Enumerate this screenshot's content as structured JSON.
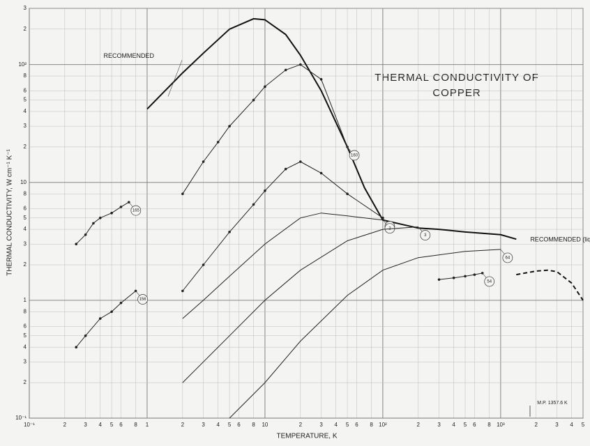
{
  "chart_data": {
    "type": "line",
    "title": "THERMAL CONDUCTIVITY OF",
    "subtitle": "COPPER",
    "x_label": "TEMPERATURE, K",
    "y_label": "THERMAL CONDUCTIVITY, W cm⁻¹ K⁻¹",
    "annotations": [
      "M.P. 1357.6 K"
    ],
    "log_x": true,
    "log_y": true,
    "grid": true,
    "xlim": [
      0.1,
      5000
    ],
    "ylim": [
      0.1,
      300
    ],
    "xticks": [
      {
        "value": 0.1,
        "label": "10⁻¹"
      },
      {
        "value": 0.2,
        "label": "2"
      },
      {
        "value": 0.3,
        "label": "3"
      },
      {
        "value": 0.4,
        "label": "4"
      },
      {
        "value": 0.5,
        "label": "5"
      },
      {
        "value": 0.6,
        "label": "6"
      },
      {
        "value": 0.8,
        "label": "8"
      },
      1,
      2,
      3,
      4,
      5,
      6,
      8,
      10,
      {
        "value": 20,
        "label": "2"
      },
      {
        "value": 30,
        "label": "3"
      },
      {
        "value": 40,
        "label": "4"
      },
      {
        "value": 50,
        "label": "5"
      },
      {
        "value": 60,
        "label": "6"
      },
      {
        "value": 80,
        "label": "8"
      },
      {
        "value": 100,
        "label": "10²"
      },
      {
        "value": 200,
        "label": "2"
      },
      {
        "value": 300,
        "label": "3"
      },
      {
        "value": 400,
        "label": "4"
      },
      {
        "value": 500,
        "label": "5"
      },
      {
        "value": 600,
        "label": "6"
      },
      {
        "value": 800,
        "label": "8"
      },
      {
        "value": 1000,
        "label": "10³"
      },
      {
        "value": 2000,
        "label": "2"
      },
      {
        "value": 3000,
        "label": "3"
      },
      {
        "value": 4000,
        "label": "4"
      },
      {
        "value": 5000,
        "label": "5"
      }
    ],
    "yticks": [
      {
        "value": 0.1,
        "label": "10⁻¹"
      },
      {
        "value": 0.2,
        "label": "2"
      },
      {
        "value": 0.3,
        "label": "3"
      },
      {
        "value": 0.4,
        "label": "4"
      },
      {
        "value": 0.5,
        "label": "5"
      },
      {
        "value": 0.6,
        "label": "6"
      },
      {
        "value": 0.8,
        "label": "8"
      },
      1,
      2,
      3,
      4,
      5,
      6,
      8,
      10,
      {
        "value": 20,
        "label": "2"
      },
      {
        "value": 30,
        "label": "3"
      },
      {
        "value": 40,
        "label": "4"
      },
      {
        "value": 50,
        "label": "5"
      },
      {
        "value": 60,
        "label": "6"
      },
      {
        "value": 80,
        "label": "8"
      },
      {
        "value": 100,
        "label": "10²"
      },
      {
        "value": 200,
        "label": "2"
      },
      {
        "value": 300,
        "label": "3"
      }
    ],
    "series": [
      {
        "name": "RECOMMENDED",
        "color": "#111111",
        "width": 2,
        "markers": false,
        "x": [
          1,
          2,
          3,
          5,
          8,
          10,
          15,
          20,
          30,
          50,
          70,
          100,
          200,
          300,
          500,
          1000,
          1357.6
        ],
        "values": [
          42,
          85,
          125,
          200,
          245,
          240,
          180,
          120,
          60,
          20,
          9,
          4.8,
          4.1,
          4.0,
          3.8,
          3.6,
          3.3
        ]
      },
      {
        "name": "RECOMMENDED (liquid)",
        "color": "#111111",
        "width": 2,
        "dashed": true,
        "markers": false,
        "x": [
          1357.6,
          1600,
          2000,
          2500,
          3000,
          4000,
          5000
        ],
        "values": [
          1.65,
          1.7,
          1.77,
          1.8,
          1.75,
          1.4,
          1.0
        ]
      },
      {
        "name": "165",
        "color": "#222222",
        "width": 1,
        "markers": true,
        "x": [
          0.25,
          0.3,
          0.35,
          0.4,
          0.5,
          0.6,
          0.7
        ],
        "values": [
          3,
          3.6,
          4.5,
          5,
          5.5,
          6.2,
          6.8
        ]
      },
      {
        "name": "156",
        "color": "#222222",
        "width": 1,
        "markers": true,
        "x": [
          0.25,
          0.3,
          0.4,
          0.5,
          0.6,
          0.8
        ],
        "values": [
          0.4,
          0.5,
          0.7,
          0.8,
          0.95,
          1.2
        ]
      },
      {
        "name": "160",
        "color": "#222222",
        "width": 1,
        "markers": true,
        "x": [
          2,
          3,
          4,
          5,
          8,
          10,
          15,
          20,
          30,
          50
        ],
        "values": [
          8,
          15,
          22,
          30,
          50,
          65,
          90,
          100,
          75,
          20
        ]
      },
      {
        "name": "1",
        "color": "#222222",
        "width": 1,
        "markers": true,
        "x": [
          2,
          3,
          5,
          8,
          10,
          15,
          20,
          30,
          50,
          100
        ],
        "values": [
          1.2,
          2,
          3.8,
          6.5,
          8.5,
          13,
          15,
          12,
          8,
          5
        ]
      },
      {
        "name": "2",
        "color": "#222222",
        "width": 1,
        "markers": false,
        "x": [
          2,
          3,
          5,
          10,
          20,
          30,
          50,
          100
        ],
        "values": [
          0.7,
          1,
          1.6,
          3,
          5,
          5.5,
          5.2,
          4.8
        ]
      },
      {
        "name": "3",
        "color": "#222222",
        "width": 1,
        "markers": false,
        "x": [
          2,
          3,
          5,
          10,
          20,
          50,
          100,
          200
        ],
        "values": [
          0.2,
          0.3,
          0.5,
          1,
          1.8,
          3.2,
          4,
          4.2
        ]
      },
      {
        "name": "64",
        "color": "#222222",
        "width": 1,
        "markers": false,
        "x": [
          5,
          10,
          20,
          50,
          100,
          200,
          500,
          1000
        ],
        "values": [
          0.1,
          0.2,
          0.45,
          1.1,
          1.8,
          2.3,
          2.6,
          2.7
        ]
      },
      {
        "name": "54",
        "color": "#222222",
        "width": 1,
        "markers": true,
        "x": [
          300,
          400,
          500,
          600,
          700
        ],
        "values": [
          1.5,
          1.55,
          1.6,
          1.65,
          1.7
        ]
      }
    ]
  }
}
